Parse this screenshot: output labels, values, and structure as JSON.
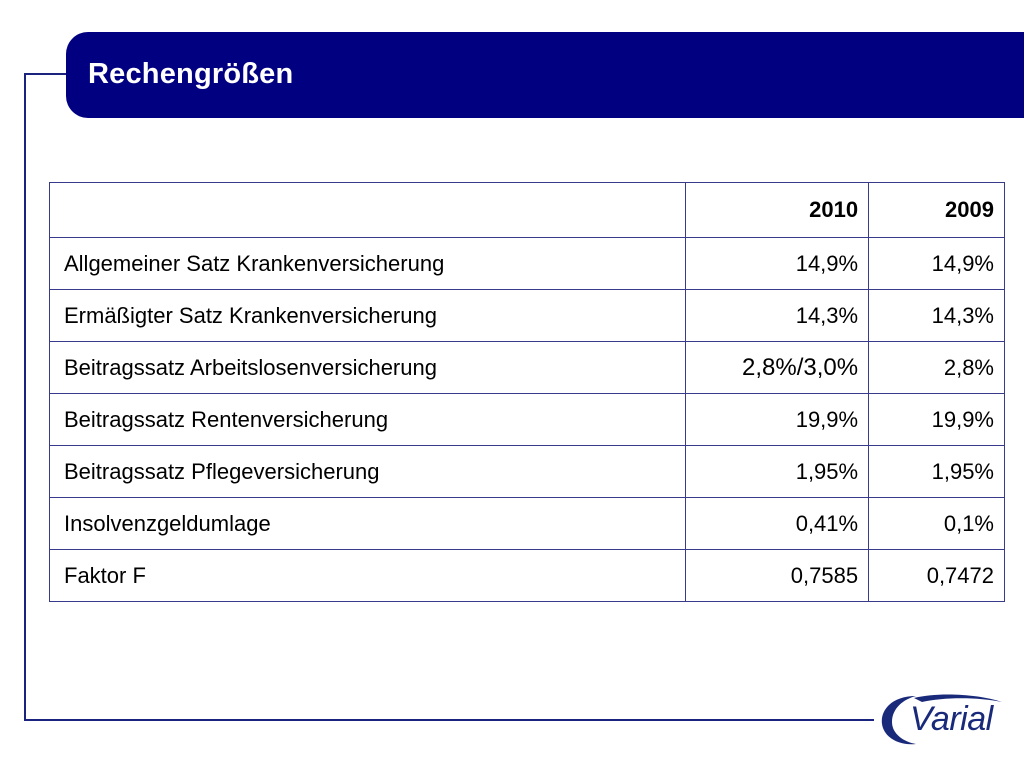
{
  "title": "Rechengrößen",
  "table": {
    "header": [
      "",
      "2010",
      "2009"
    ],
    "rows": [
      {
        "label": "Allgemeiner Satz Krankenversicherung",
        "y2010": "14,9%",
        "y2009": "14,9%"
      },
      {
        "label": "Ermäßigter Satz Krankenversicherung",
        "y2010": "14,3%",
        "y2009": "14,3%"
      },
      {
        "label": "Beitragssatz Arbeitslosenversicherung",
        "y2010": "2,8%/3,0%",
        "y2009": "2,8%"
      },
      {
        "label": "Beitragssatz Rentenversicherung",
        "y2010": "19,9%",
        "y2009": "19,9%"
      },
      {
        "label": "Beitragssatz Pflegeversicherung",
        "y2010": "1,95%",
        "y2009": "1,95%"
      },
      {
        "label": "Insolvenzgeldumlage",
        "y2010": "0,41%",
        "y2009": "0,1%"
      },
      {
        "label": "Faktor F",
        "y2010": "0,7585",
        "y2009": "0,7472"
      }
    ]
  },
  "logo": {
    "text": "Varial"
  },
  "colors": {
    "brand_navy": "#000080",
    "line": "#1a237e",
    "logo": "#1a2a7a"
  }
}
